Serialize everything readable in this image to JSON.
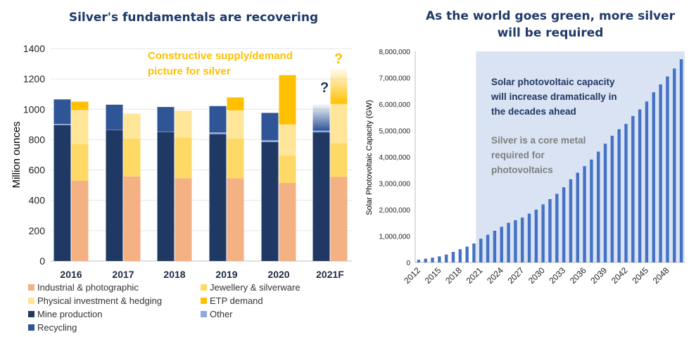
{
  "colors": {
    "industrial": "#f4b183",
    "jewellery": "#ffd966",
    "investment": "#ffe699",
    "etp": "#ffc000",
    "mine": "#1f3864",
    "other": "#8faadc",
    "recycling": "#2f5597",
    "solar_bar": "#4472c4",
    "shade": "#dae3f3",
    "title": "#1f3a68",
    "annotation_orange": "#ffc000",
    "annotation_navy": "#1f3864",
    "annotation_gray": "#7f7f7f"
  },
  "chart_data": [
    {
      "type": "bar",
      "title": "Silver's fundamentals are recovering",
      "ylabel": "Million ounces",
      "ylim": [
        0,
        1400
      ],
      "yticks": [
        "0",
        "200",
        "400",
        "600",
        "800",
        "1000",
        "1200",
        "1400"
      ],
      "categories": [
        "2016",
        "2017",
        "2018",
        "2019",
        "2020",
        "2021F"
      ],
      "supply_series": [
        {
          "name": "Mine production",
          "color_key": "mine",
          "values": [
            895,
            862,
            850,
            836,
            784,
            848
          ]
        },
        {
          "name": "Other",
          "color_key": "other",
          "values": [
            8,
            2,
            2,
            12,
            12,
            12
          ]
        },
        {
          "name": "Recycling",
          "color_key": "recycling",
          "values": [
            162,
            166,
            163,
            173,
            180,
            180
          ]
        }
      ],
      "demand_series": [
        {
          "name": "Industrial & photographic",
          "color_key": "industrial",
          "values": [
            530,
            557,
            545,
            545,
            515,
            555
          ]
        },
        {
          "name": "Jewellery & silverware",
          "color_key": "jewellery",
          "values": [
            240,
            250,
            268,
            262,
            180,
            222
          ]
        },
        {
          "name": "Physical investment & hedging",
          "color_key": "investment",
          "values": [
            225,
            165,
            177,
            186,
            205,
            258
          ]
        },
        {
          "name": "ETP demand",
          "color_key": "etp",
          "values": [
            55,
            0,
            0,
            85,
            325,
            245
          ]
        }
      ],
      "annotations": {
        "constructive_line1": "Constructive supply/demand",
        "constructive_line2": "picture for silver",
        "q_supply": "?",
        "q_demand": "?"
      },
      "legend": [
        {
          "label": "Industrial & photographic",
          "color_key": "industrial"
        },
        {
          "label": "Jewellery & silverware",
          "color_key": "jewellery"
        },
        {
          "label": "Physical investment & hedging",
          "color_key": "investment"
        },
        {
          "label": "ETP demand",
          "color_key": "etp"
        },
        {
          "label": "Mine production",
          "color_key": "mine"
        },
        {
          "label": "Other",
          "color_key": "other"
        },
        {
          "label": "Recycling",
          "color_key": "recycling"
        }
      ]
    },
    {
      "type": "bar",
      "title_line1": "As the world goes green, more silver",
      "title_line2": "will be required",
      "ylabel": "Solar Photovoltaic Capacity (GW)",
      "ylim": [
        0,
        8000000
      ],
      "yticks": [
        "0",
        "1,000,000",
        "2,000,000",
        "3,000,000",
        "4,000,000",
        "5,000,000",
        "6,000,000",
        "7,000,000",
        "8,000,000"
      ],
      "x": [
        2012,
        2013,
        2014,
        2015,
        2016,
        2017,
        2018,
        2019,
        2020,
        2021,
        2022,
        2023,
        2024,
        2025,
        2026,
        2027,
        2028,
        2029,
        2030,
        2031,
        2032,
        2033,
        2034,
        2035,
        2036,
        2037,
        2038,
        2039,
        2040,
        2041,
        2042,
        2043,
        2044,
        2045,
        2046,
        2047,
        2048,
        2049,
        2050
      ],
      "xtick_labels": [
        "2012",
        "2015",
        "2018",
        "2021",
        "2024",
        "2027",
        "2030",
        "2033",
        "2036",
        "2039",
        "2042",
        "2045",
        "2048"
      ],
      "values": [
        100000,
        140000,
        180000,
        230000,
        300000,
        400000,
        500000,
        600000,
        720000,
        900000,
        1050000,
        1200000,
        1350000,
        1500000,
        1600000,
        1700000,
        1850000,
        2000000,
        2200000,
        2400000,
        2600000,
        2850000,
        3150000,
        3400000,
        3650000,
        3900000,
        4200000,
        4500000,
        4800000,
        5050000,
        5250000,
        5550000,
        5800000,
        6100000,
        6450000,
        6750000,
        7050000,
        7350000,
        7700000
      ],
      "shaded_from": 2021,
      "annotations": {
        "solar_line1": "Solar photovoltaic capacity",
        "solar_line2": "will increase dramatically in",
        "solar_line3": "the decades ahead",
        "silver_line1": "Silver is a core metal",
        "silver_line2": "required for",
        "silver_line3": "photovoltaics"
      }
    }
  ]
}
